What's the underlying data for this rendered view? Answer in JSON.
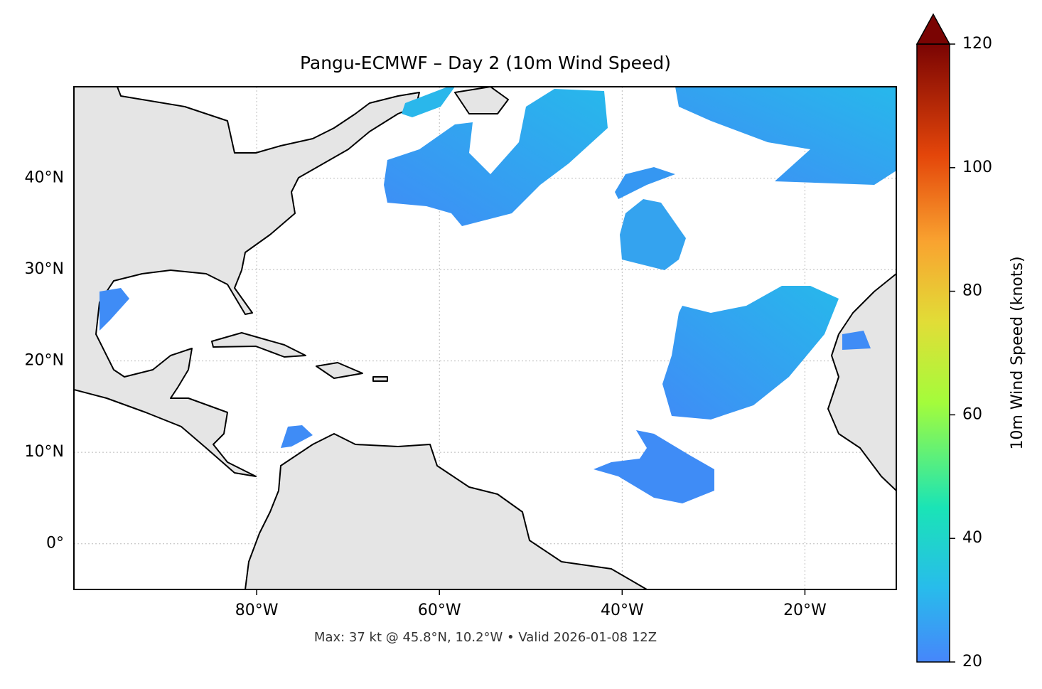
{
  "map": {
    "title": "Pangu-ECMWF – Day 2 (10m Wind Speed)",
    "footer": "Max: 37 kt @ 45.8°N, 10.2°W • Valid 2026-01-08 12Z",
    "xlim": [
      -100,
      -10
    ],
    "ylim": [
      -5,
      50
    ],
    "xticks": [
      {
        "value": -80,
        "label": "80°W"
      },
      {
        "value": -60,
        "label": "60°W"
      },
      {
        "value": -40,
        "label": "40°W"
      },
      {
        "value": -20,
        "label": "20°W"
      }
    ],
    "yticks": [
      {
        "value": 0,
        "label": "0°"
      },
      {
        "value": 10,
        "label": "10°N"
      },
      {
        "value": 20,
        "label": "20°N"
      },
      {
        "value": 30,
        "label": "30°N"
      },
      {
        "value": 40,
        "label": "40°N"
      }
    ],
    "grid": true,
    "colorbar": {
      "label": "10m Wind Speed (knots)",
      "lim": [
        20,
        120
      ],
      "ticks": [
        20,
        40,
        60,
        80,
        100,
        120
      ],
      "extend": "max"
    }
  }
}
